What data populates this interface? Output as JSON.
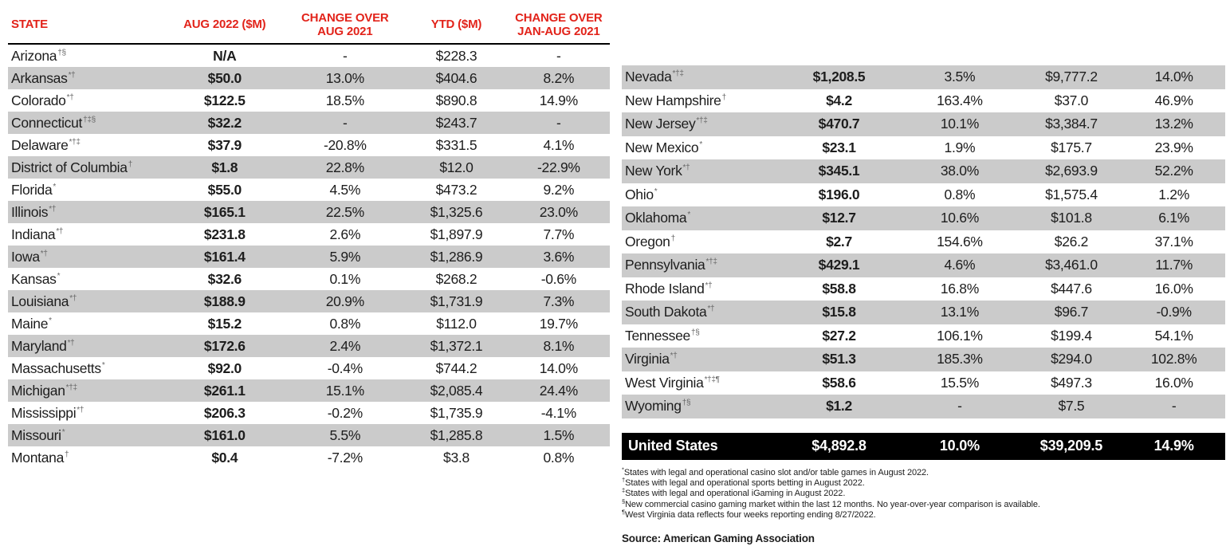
{
  "palette": {
    "header_red": "#e2231a",
    "stripe_gray": "#cbcbcb",
    "total_bar_black": "#000000",
    "text_black": "#1d1d1d"
  },
  "header": {
    "state": "STATE",
    "aug_2022": "AUG 2022 ($M)",
    "change_aug_l1": "CHANGE OVER",
    "change_aug_l2": "AUG 2021",
    "ytd": "YTD ($M)",
    "change_ytd_l1": "CHANGE OVER",
    "change_ytd_l2": "JAN-AUG 2021"
  },
  "left_table": {
    "rows": [
      {
        "state": "Arizona",
        "sup": "†§",
        "aug_2022": "N/A",
        "change_aug": "-",
        "ytd": "$228.3",
        "change_ytd": "-"
      },
      {
        "state": "Arkansas",
        "sup": "*†",
        "aug_2022": "$50.0",
        "change_aug": "13.0%",
        "ytd": "$404.6",
        "change_ytd": "8.2%"
      },
      {
        "state": "Colorado",
        "sup": "*†",
        "aug_2022": "$122.5",
        "change_aug": "18.5%",
        "ytd": "$890.8",
        "change_ytd": "14.9%"
      },
      {
        "state": "Connecticut",
        "sup": "†‡§",
        "aug_2022": "$32.2",
        "change_aug": "-",
        "ytd": "$243.7",
        "change_ytd": "-"
      },
      {
        "state": "Delaware",
        "sup": "*†‡",
        "aug_2022": "$37.9",
        "change_aug": "-20.8%",
        "ytd": "$331.5",
        "change_ytd": "4.1%"
      },
      {
        "state": "District of Columbia",
        "sup": "†",
        "aug_2022": "$1.8",
        "change_aug": "22.8%",
        "ytd": "$12.0",
        "change_ytd": "-22.9%"
      },
      {
        "state": "Florida",
        "sup": "*",
        "aug_2022": "$55.0",
        "change_aug": "4.5%",
        "ytd": "$473.2",
        "change_ytd": "9.2%"
      },
      {
        "state": "Illinois",
        "sup": "*†",
        "aug_2022": "$165.1",
        "change_aug": "22.5%",
        "ytd": "$1,325.6",
        "change_ytd": "23.0%"
      },
      {
        "state": "Indiana",
        "sup": "*†",
        "aug_2022": "$231.8",
        "change_aug": "2.6%",
        "ytd": "$1,897.9",
        "change_ytd": "7.7%"
      },
      {
        "state": "Iowa",
        "sup": "*†",
        "aug_2022": "$161.4",
        "change_aug": "5.9%",
        "ytd": "$1,286.9",
        "change_ytd": "3.6%"
      },
      {
        "state": "Kansas",
        "sup": "*",
        "aug_2022": "$32.6",
        "change_aug": "0.1%",
        "ytd": "$268.2",
        "change_ytd": "-0.6%"
      },
      {
        "state": "Louisiana",
        "sup": "*†",
        "aug_2022": "$188.9",
        "change_aug": "20.9%",
        "ytd": "$1,731.9",
        "change_ytd": "7.3%"
      },
      {
        "state": "Maine",
        "sup": "*",
        "aug_2022": "$15.2",
        "change_aug": "0.8%",
        "ytd": "$112.0",
        "change_ytd": "19.7%"
      },
      {
        "state": "Maryland",
        "sup": "*†",
        "aug_2022": "$172.6",
        "change_aug": "2.4%",
        "ytd": "$1,372.1",
        "change_ytd": "8.1%"
      },
      {
        "state": "Massachusetts",
        "sup": "*",
        "aug_2022": "$92.0",
        "change_aug": "-0.4%",
        "ytd": "$744.2",
        "change_ytd": "14.0%"
      },
      {
        "state": "Michigan",
        "sup": "*†‡",
        "aug_2022": "$261.1",
        "change_aug": "15.1%",
        "ytd": "$2,085.4",
        "change_ytd": "24.4%"
      },
      {
        "state": "Mississippi",
        "sup": "*†",
        "aug_2022": "$206.3",
        "change_aug": "-0.2%",
        "ytd": "$1,735.9",
        "change_ytd": "-4.1%"
      },
      {
        "state": "Missouri",
        "sup": "*",
        "aug_2022": "$161.0",
        "change_aug": "5.5%",
        "ytd": "$1,285.8",
        "change_ytd": "1.5%"
      },
      {
        "state": "Montana",
        "sup": "†",
        "aug_2022": "$0.4",
        "change_aug": "-7.2%",
        "ytd": "$3.8",
        "change_ytd": "0.8%"
      }
    ]
  },
  "right_table": {
    "rows": [
      {
        "state": "Nevada",
        "sup": "*†‡",
        "aug_2022": "$1,208.5",
        "change_aug": "3.5%",
        "ytd": "$9,777.2",
        "change_ytd": "14.0%"
      },
      {
        "state": "New Hampshire",
        "sup": "†",
        "aug_2022": "$4.2",
        "change_aug": "163.4%",
        "ytd": "$37.0",
        "change_ytd": "46.9%"
      },
      {
        "state": "New Jersey",
        "sup": "*†‡",
        "aug_2022": "$470.7",
        "change_aug": "10.1%",
        "ytd": "$3,384.7",
        "change_ytd": "13.2%"
      },
      {
        "state": "New Mexico",
        "sup": "*",
        "aug_2022": "$23.1",
        "change_aug": "1.9%",
        "ytd": "$175.7",
        "change_ytd": "23.9%"
      },
      {
        "state": "New York",
        "sup": "*†",
        "aug_2022": "$345.1",
        "change_aug": "38.0%",
        "ytd": "$2,693.9",
        "change_ytd": "52.2%"
      },
      {
        "state": "Ohio",
        "sup": "*",
        "aug_2022": "$196.0",
        "change_aug": "0.8%",
        "ytd": "$1,575.4",
        "change_ytd": "1.2%"
      },
      {
        "state": "Oklahoma",
        "sup": "*",
        "aug_2022": "$12.7",
        "change_aug": "10.6%",
        "ytd": "$101.8",
        "change_ytd": "6.1%"
      },
      {
        "state": "Oregon",
        "sup": "†",
        "aug_2022": "$2.7",
        "change_aug": "154.6%",
        "ytd": "$26.2",
        "change_ytd": "37.1%"
      },
      {
        "state": "Pennsylvania",
        "sup": "*†‡",
        "aug_2022": "$429.1",
        "change_aug": "4.6%",
        "ytd": "$3,461.0",
        "change_ytd": "11.7%"
      },
      {
        "state": "Rhode Island",
        "sup": "*†",
        "aug_2022": "$58.8",
        "change_aug": "16.8%",
        "ytd": "$447.6",
        "change_ytd": "16.0%"
      },
      {
        "state": "South Dakota",
        "sup": "*†",
        "aug_2022": "$15.8",
        "change_aug": "13.1%",
        "ytd": "$96.7",
        "change_ytd": "-0.9%"
      },
      {
        "state": "Tennessee",
        "sup": "†§",
        "aug_2022": "$27.2",
        "change_aug": "106.1%",
        "ytd": "$199.4",
        "change_ytd": "54.1%"
      },
      {
        "state": "Virginia",
        "sup": "*†",
        "aug_2022": "$51.3",
        "change_aug": "185.3%",
        "ytd": "$294.0",
        "change_ytd": "102.8%"
      },
      {
        "state": "West Virginia",
        "sup": "*†‡¶",
        "aug_2022": "$58.6",
        "change_aug": "15.5%",
        "ytd": "$497.3",
        "change_ytd": "16.0%"
      },
      {
        "state": "Wyoming",
        "sup": "†§",
        "aug_2022": "$1.2",
        "change_aug": "-",
        "ytd": "$7.5",
        "change_ytd": "-"
      }
    ]
  },
  "total_row": {
    "label": "United States",
    "aug_2022": "$4,892.8",
    "change_aug": "10.0%",
    "ytd": "$39,209.5",
    "change_ytd": "14.9%"
  },
  "footnotes": [
    {
      "sup": "*",
      "text": "States with legal and operational casino slot and/or table games in August 2022."
    },
    {
      "sup": "†",
      "text": "States with legal and operational sports betting in August 2022."
    },
    {
      "sup": "‡",
      "text": "States with legal and operational iGaming in August 2022."
    },
    {
      "sup": "§",
      "text": "New commercial casino gaming market within the last 12 months. No year-over-year comparison is available."
    },
    {
      "sup": "¶",
      "text": "West Virginia data reflects four weeks reporting ending 8/27/2022."
    }
  ],
  "source": "Source: American Gaming Association"
}
